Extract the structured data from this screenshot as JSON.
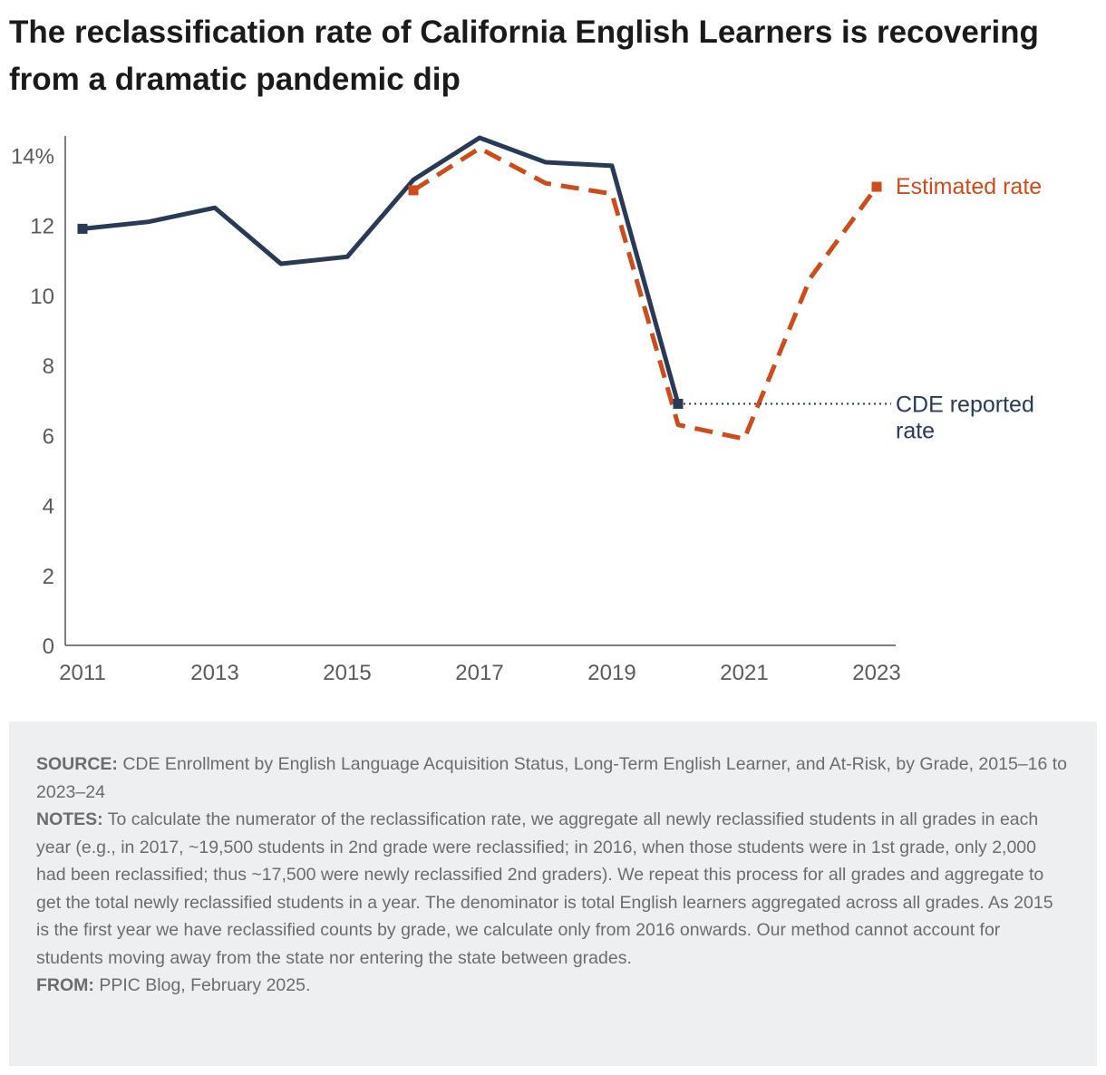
{
  "title": "The reclassification rate of California English Learners is recovering from a dramatic pandemic dip",
  "chart_data": {
    "type": "line",
    "title": "The reclassification rate of California English Learners is recovering from a dramatic pandemic dip",
    "xlabel": "",
    "ylabel": "",
    "xlim": [
      2011,
      2023
    ],
    "ylim": [
      0,
      14.5
    ],
    "x_ticks": [
      "2011",
      "2013",
      "2015",
      "2017",
      "2019",
      "2021",
      "2023"
    ],
    "y_ticks": [
      "0",
      "2",
      "4",
      "6",
      "8",
      "10",
      "12",
      "14%"
    ],
    "grid": false,
    "series": [
      {
        "name": "CDE reported rate",
        "label": "CDE reported rate",
        "style": "solid",
        "color": "#283a56",
        "x": [
          2011,
          2012,
          2013,
          2014,
          2015,
          2016,
          2017,
          2018,
          2019,
          2020
        ],
        "values": [
          11.9,
          12.1,
          12.5,
          10.9,
          11.1,
          13.3,
          14.5,
          13.8,
          13.7,
          6.9
        ]
      },
      {
        "name": "Estimated rate",
        "label": "Estimated rate",
        "style": "dashed",
        "color": "#cc4c1b",
        "x": [
          2016,
          2017,
          2018,
          2019,
          2020,
          2021,
          2022,
          2023
        ],
        "values": [
          13.0,
          14.2,
          13.2,
          12.9,
          6.3,
          5.9,
          10.5,
          13.1
        ]
      }
    ]
  },
  "legend": {
    "estimated_label": "Estimated rate",
    "cde_label_line1": "CDE reported",
    "cde_label_line2": "rate"
  },
  "footnote": {
    "source_label": "SOURCE:",
    "source_text": "CDE Enrollment by English Language Acquisition Status, Long-Term English Learner, and At-Risk, by Grade, 2015–16 to 2023–24",
    "notes_label": "NOTES:",
    "notes_text": "To calculate the numerator of the reclassification rate, we aggregate all newly reclassified students in all grades in each year (e.g., in 2017, ~19,500 students in 2nd grade were reclassified; in 2016, when those students were in 1st grade, only 2,000 had been reclassified; thus ~17,500 were newly reclassified 2nd graders). We repeat this process for all grades and aggregate to get the total newly reclassified students in a year. The denominator is total English learners aggregated across all grades. As 2015 is the first year we have reclassified counts by grade, we calculate only from 2016 onwards. Our method cannot account for students moving away from the state nor entering the state between grades.",
    "from_label": "FROM:",
    "from_text": "PPIC Blog, February 2025."
  }
}
